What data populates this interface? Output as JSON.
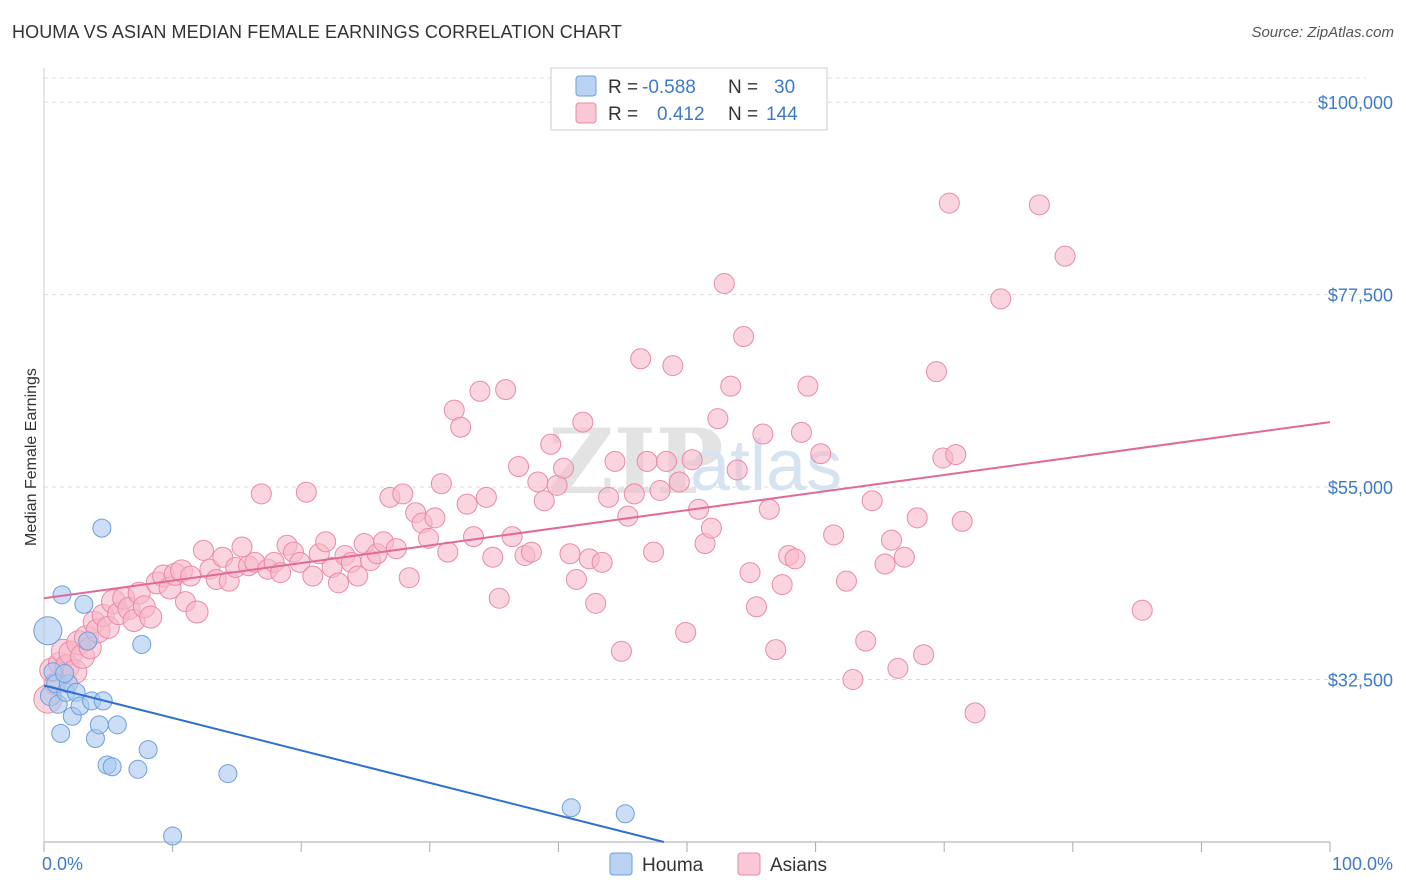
{
  "title": "HOUMA VS ASIAN MEDIAN FEMALE EARNINGS CORRELATION CHART",
  "source": "Source: ZipAtlas.com",
  "watermark": {
    "zip": "ZIP",
    "atlas": "atlas"
  },
  "colors": {
    "houma_fill": "#a9c8ef",
    "houma_stroke": "#6f9fdc",
    "houma_line": "#2f6fcf",
    "asian_fill": "#f7b9ca",
    "asian_stroke": "#ea8aa8",
    "asian_line": "#e0699a",
    "grid": "#dddddd",
    "axis_text": "#3f7ac9"
  },
  "legend": {
    "houma": {
      "r_label": "R =",
      "r_value": "-0.588",
      "n_label": "N =",
      "n_value": "30"
    },
    "asian": {
      "r_label": "R =",
      "r_value": "0.412",
      "n_label": "N =",
      "n_value": "144"
    }
  },
  "chart_data": {
    "type": "scatter",
    "ylabel": "Median Female Earnings",
    "xlim": [
      0,
      100
    ],
    "ylim": [
      13500,
      104000
    ],
    "x_tick_labels": [
      "0.0%",
      "100.0%"
    ],
    "y_ticks": [
      {
        "value": 32500,
        "label": "$32,500"
      },
      {
        "value": 55000,
        "label": "$55,000"
      },
      {
        "value": 77500,
        "label": "$77,500"
      },
      {
        "value": 100000,
        "label": "$100,000"
      }
    ],
    "series": [
      {
        "name": "Houma",
        "trend": {
          "x": [
            0,
            48.2
          ],
          "y": [
            31800,
            13500
          ]
        },
        "points": [
          [
            0.3,
            38200,
            14
          ],
          [
            0.5,
            30600,
            10
          ],
          [
            0.7,
            33400,
            9
          ],
          [
            0.9,
            32000,
            9
          ],
          [
            1.1,
            29600,
            9
          ],
          [
            1.3,
            26200,
            9
          ],
          [
            1.4,
            42400,
            9
          ],
          [
            1.7,
            31000,
            9
          ],
          [
            1.9,
            32000,
            9
          ],
          [
            2.2,
            28200,
            9
          ],
          [
            2.5,
            31000,
            9
          ],
          [
            2.8,
            29400,
            9
          ],
          [
            3.1,
            41300,
            9
          ],
          [
            3.4,
            37000,
            9
          ],
          [
            3.7,
            30000,
            9
          ],
          [
            4.0,
            25600,
            9
          ],
          [
            4.3,
            27200,
            9
          ],
          [
            4.6,
            30000,
            9
          ],
          [
            4.5,
            50200,
            9
          ],
          [
            4.9,
            22500,
            9
          ],
          [
            5.3,
            22300,
            9
          ],
          [
            5.7,
            27200,
            9
          ],
          [
            7.3,
            22000,
            9
          ],
          [
            7.6,
            36600,
            9
          ],
          [
            8.1,
            24300,
            9
          ],
          [
            10.0,
            14200,
            9
          ],
          [
            14.3,
            21500,
            9
          ],
          [
            41.0,
            17500,
            9
          ],
          [
            45.2,
            16800,
            9
          ],
          [
            1.6,
            33200,
            9
          ]
        ]
      },
      {
        "name": "Asians",
        "trend": {
          "x": [
            0,
            100
          ],
          "y": [
            42000,
            62600
          ]
        },
        "points": [
          [
            0.3,
            30200,
            14
          ],
          [
            0.6,
            33600,
            12
          ],
          [
            0.9,
            32000,
            11
          ],
          [
            1.2,
            34400,
            11
          ],
          [
            1.5,
            35800,
            12
          ],
          [
            1.8,
            34000,
            12
          ],
          [
            2.1,
            35600,
            12
          ],
          [
            2.4,
            33400,
            12
          ],
          [
            2.7,
            36800,
            12
          ],
          [
            3.0,
            35200,
            12
          ],
          [
            3.3,
            37400,
            12
          ],
          [
            3.6,
            36200,
            11
          ],
          [
            3.9,
            39200,
            11
          ],
          [
            4.2,
            38200,
            12
          ],
          [
            4.6,
            40000,
            11
          ],
          [
            5.0,
            38600,
            11
          ],
          [
            5.4,
            41600,
            12
          ],
          [
            5.8,
            40200,
            11
          ],
          [
            6.2,
            42000,
            11
          ],
          [
            6.6,
            40800,
            11
          ],
          [
            7.0,
            39400,
            11
          ],
          [
            7.4,
            42600,
            11
          ],
          [
            7.8,
            41000,
            11
          ],
          [
            8.3,
            39800,
            11
          ],
          [
            8.8,
            43800,
            11
          ],
          [
            9.3,
            44600,
            11
          ],
          [
            9.8,
            43200,
            11
          ],
          [
            10.2,
            44800,
            11
          ],
          [
            10.7,
            45200,
            11
          ],
          [
            11.0,
            41600,
            10
          ],
          [
            11.4,
            44600,
            10
          ],
          [
            11.9,
            40400,
            11
          ],
          [
            12.4,
            47600,
            10
          ],
          [
            12.9,
            45400,
            10
          ],
          [
            13.4,
            44200,
            10
          ],
          [
            13.9,
            46800,
            10
          ],
          [
            14.4,
            44000,
            10
          ],
          [
            14.9,
            45600,
            10
          ],
          [
            15.4,
            48000,
            10
          ],
          [
            15.9,
            45800,
            10
          ],
          [
            16.4,
            46200,
            10
          ],
          [
            16.9,
            54200,
            10
          ],
          [
            17.4,
            45400,
            10
          ],
          [
            17.9,
            46200,
            10
          ],
          [
            18.4,
            45000,
            10
          ],
          [
            18.9,
            48200,
            10
          ],
          [
            19.4,
            47400,
            10
          ],
          [
            19.9,
            46200,
            10
          ],
          [
            20.4,
            54400,
            10
          ],
          [
            20.9,
            44600,
            10
          ],
          [
            21.4,
            47200,
            10
          ],
          [
            21.9,
            48600,
            10
          ],
          [
            22.4,
            45600,
            10
          ],
          [
            22.9,
            43800,
            10
          ],
          [
            23.4,
            47000,
            10
          ],
          [
            23.9,
            46200,
            10
          ],
          [
            24.4,
            44600,
            10
          ],
          [
            24.9,
            48400,
            10
          ],
          [
            25.4,
            46400,
            10
          ],
          [
            25.9,
            47200,
            10
          ],
          [
            26.4,
            48600,
            10
          ],
          [
            26.9,
            53800,
            10
          ],
          [
            27.4,
            47800,
            10
          ],
          [
            27.9,
            54200,
            10
          ],
          [
            28.4,
            44400,
            10
          ],
          [
            28.9,
            52000,
            10
          ],
          [
            29.4,
            50800,
            10
          ],
          [
            29.9,
            49000,
            10
          ],
          [
            30.4,
            51400,
            10
          ],
          [
            30.9,
            55400,
            10
          ],
          [
            31.4,
            47400,
            10
          ],
          [
            31.9,
            64000,
            10
          ],
          [
            32.4,
            62000,
            10
          ],
          [
            32.9,
            53000,
            10
          ],
          [
            33.4,
            49200,
            10
          ],
          [
            33.9,
            66200,
            10
          ],
          [
            34.4,
            53800,
            10
          ],
          [
            34.9,
            46800,
            10
          ],
          [
            35.4,
            42000,
            10
          ],
          [
            35.9,
            66400,
            10
          ],
          [
            36.4,
            49200,
            10
          ],
          [
            36.9,
            57400,
            10
          ],
          [
            37.4,
            47000,
            10
          ],
          [
            37.9,
            47400,
            10
          ],
          [
            38.4,
            55600,
            10
          ],
          [
            38.9,
            53400,
            10
          ],
          [
            39.4,
            60000,
            10
          ],
          [
            39.9,
            55200,
            10
          ],
          [
            40.4,
            57200,
            10
          ],
          [
            40.9,
            47200,
            10
          ],
          [
            41.4,
            44200,
            10
          ],
          [
            41.9,
            62600,
            10
          ],
          [
            42.4,
            46600,
            10
          ],
          [
            42.9,
            41400,
            10
          ],
          [
            43.4,
            46200,
            10
          ],
          [
            43.9,
            53800,
            10
          ],
          [
            44.4,
            58000,
            10
          ],
          [
            44.9,
            35800,
            10
          ],
          [
            45.4,
            51600,
            10
          ],
          [
            45.9,
            54200,
            10
          ],
          [
            46.4,
            70000,
            10
          ],
          [
            46.9,
            58000,
            10
          ],
          [
            47.4,
            47400,
            10
          ],
          [
            47.9,
            54600,
            10
          ],
          [
            48.4,
            58000,
            10
          ],
          [
            48.9,
            69200,
            10
          ],
          [
            49.4,
            55600,
            10
          ],
          [
            49.9,
            38000,
            10
          ],
          [
            50.4,
            58200,
            10
          ],
          [
            50.9,
            52400,
            10
          ],
          [
            51.4,
            48400,
            10
          ],
          [
            51.9,
            50200,
            10
          ],
          [
            52.4,
            63000,
            10
          ],
          [
            52.9,
            78800,
            10
          ],
          [
            53.4,
            66800,
            10
          ],
          [
            53.9,
            57000,
            10
          ],
          [
            54.4,
            72600,
            10
          ],
          [
            54.9,
            45000,
            10
          ],
          [
            55.4,
            41000,
            10
          ],
          [
            55.9,
            61200,
            10
          ],
          [
            56.4,
            52400,
            10
          ],
          [
            56.9,
            36000,
            10
          ],
          [
            57.4,
            43600,
            10
          ],
          [
            57.9,
            47000,
            10
          ],
          [
            58.4,
            46600,
            10
          ],
          [
            58.9,
            61400,
            10
          ],
          [
            59.4,
            66800,
            10
          ],
          [
            60.4,
            58900,
            10
          ],
          [
            61.4,
            49400,
            10
          ],
          [
            62.4,
            44000,
            10
          ],
          [
            62.9,
            32500,
            10
          ],
          [
            63.9,
            37000,
            10
          ],
          [
            64.4,
            53400,
            10
          ],
          [
            65.4,
            46000,
            10
          ],
          [
            66.4,
            33800,
            10
          ],
          [
            66.9,
            46800,
            10
          ],
          [
            67.9,
            51400,
            10
          ],
          [
            68.4,
            35400,
            10
          ],
          [
            69.4,
            68500,
            10
          ],
          [
            69.9,
            58400,
            10
          ],
          [
            70.4,
            88200,
            10
          ],
          [
            71.4,
            51000,
            10
          ],
          [
            72.4,
            28600,
            10
          ],
          [
            74.4,
            77000,
            10
          ],
          [
            77.4,
            88000,
            10
          ],
          [
            79.4,
            82000,
            10
          ],
          [
            85.4,
            40600,
            10
          ],
          [
            70.9,
            58800,
            10
          ],
          [
            65.9,
            48800,
            10
          ]
        ]
      }
    ]
  },
  "bottom_legend": {
    "houma": "Houma",
    "asian": "Asians"
  }
}
